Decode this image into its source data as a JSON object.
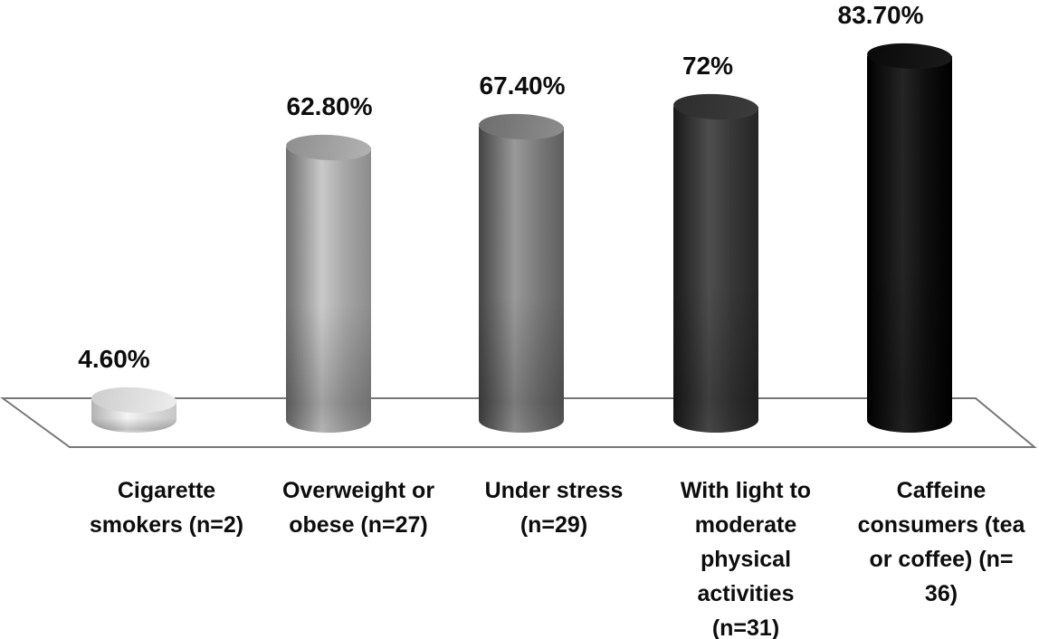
{
  "chart_data": {
    "type": "bar",
    "subtype": "3d-cylinder",
    "title": "",
    "xlabel": "",
    "ylabel": "",
    "ylim": [
      0,
      100
    ],
    "grid": false,
    "legend": false,
    "background_color": "#ffffff",
    "floor_line_color": "#777777",
    "text_color": "#0d0d0d",
    "categories": [
      "Cigarette smokers (n=2)",
      "Overweight or obese (n=27)",
      "Under stress (n=29)",
      "With light to moderate physical activities (n=31)",
      "Caffeine consumers (tea or coffee) (n= 36)"
    ],
    "category_labels_display": [
      "Cigarette\nsmokers (n=2)",
      "Overweight or\nobese (n=27)",
      "Under stress\n(n=29)",
      "With light to\nmoderate\nphysical\nactivities\n(n=31)",
      "Caffeine\nconsumers (tea\nor coffee) (n=\n36)"
    ],
    "values": [
      4.6,
      62.8,
      67.4,
      72,
      83.7
    ],
    "value_labels": [
      "4.60%",
      "62.80%",
      "67.40%",
      "72%",
      "83.70%"
    ],
    "bar_colors": [
      "#e8e8e8",
      "#a8a8a8",
      "#7d7d7d",
      "#373737",
      "#0a0a0a"
    ],
    "bar_body_gradients": [
      [
        "#b2b2b2",
        "#f4f4f4",
        "#dcdcdc",
        "#c6c6c6"
      ],
      [
        "#6e6e6e",
        "#c9c9c9",
        "#a6a6a6",
        "#8c8c8c"
      ],
      [
        "#454545",
        "#999999",
        "#7a7a7a",
        "#5e5e5e"
      ],
      [
        "#181818",
        "#4e4e4e",
        "#373737",
        "#252525"
      ],
      [
        "#000000",
        "#252525",
        "#0f0f0f",
        "#000000"
      ]
    ],
    "bar_cap_gradients": [
      [
        "#cdcdcd",
        "#ededed"
      ],
      [
        "#8e8e8e",
        "#b2b2b2"
      ],
      [
        "#6d6d6d",
        "#8d8d8d"
      ],
      [
        "#2d2d2d",
        "#3c3c3c"
      ],
      [
        "#090909",
        "#1b1b1b"
      ]
    ]
  }
}
